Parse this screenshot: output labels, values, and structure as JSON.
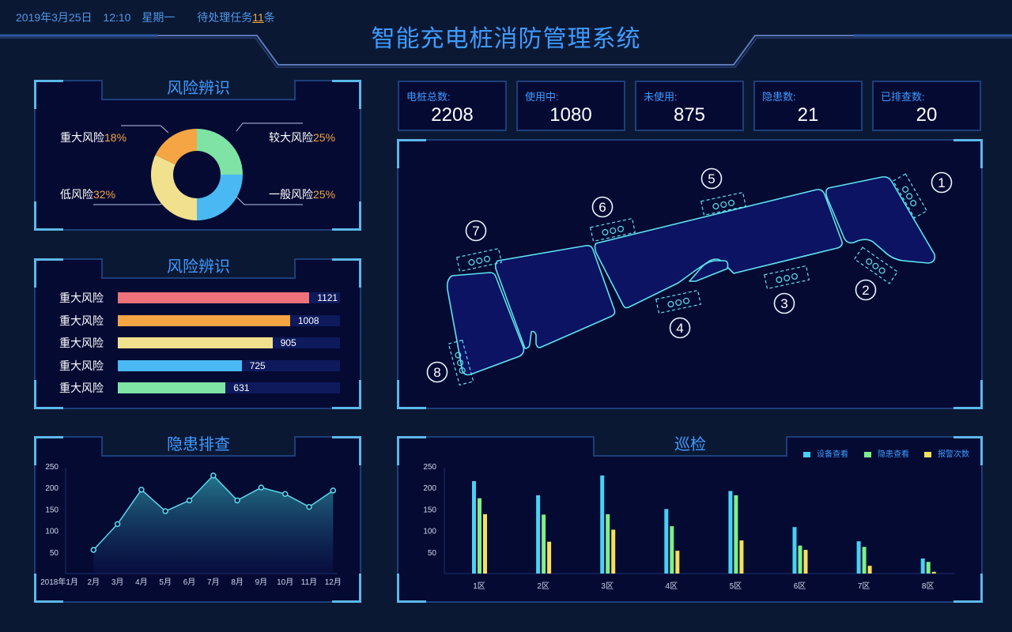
{
  "header": {
    "date": "2019年3月25日",
    "time": "12:10",
    "weekday": "星期一",
    "tasks_prefix": "待处理任务",
    "tasks_count": "11",
    "tasks_suffix": "条",
    "title": "智能充电桩消防管理系统"
  },
  "risk_pie": {
    "title": "风险辨识",
    "slices": [
      {
        "label": "较大风险",
        "pct": "25%",
        "value": 25,
        "color": "#7ee3a5"
      },
      {
        "label": "一般风险",
        "pct": "25%",
        "value": 25,
        "color": "#4ab9f3"
      },
      {
        "label": "低风险",
        "pct": "32%",
        "value": 32,
        "color": "#f1e08e"
      },
      {
        "label": "重大风险",
        "pct": "18%",
        "value": 18,
        "color": "#f5a544"
      }
    ]
  },
  "risk_bars": {
    "title": "风险辨识",
    "max": 1300,
    "rows": [
      {
        "label": "重大风险",
        "value": 1121,
        "color": "#ef7179"
      },
      {
        "label": "重大风险",
        "value": 1008,
        "color": "#f5a544"
      },
      {
        "label": "重大风险",
        "value": 905,
        "color": "#f1e08e"
      },
      {
        "label": "重大风险",
        "value": 725,
        "color": "#4ab9f3"
      },
      {
        "label": "重大风险",
        "value": 631,
        "color": "#7ee3a5"
      }
    ]
  },
  "stats": [
    {
      "label": "电桩总数:",
      "value": "2208"
    },
    {
      "label": "使用中:",
      "value": "1080"
    },
    {
      "label": "未使用:",
      "value": "875"
    },
    {
      "label": "隐患数:",
      "value": "21"
    },
    {
      "label": "已排查数:",
      "value": "20"
    }
  ],
  "map": {
    "zones": [
      "1",
      "2",
      "3",
      "4",
      "5",
      "6",
      "7",
      "8"
    ]
  },
  "hazard": {
    "title": "隐患排查"
  },
  "patrol": {
    "title": "巡检",
    "legend": [
      "设备查看",
      "隐患查看",
      "报警次数"
    ]
  },
  "chart_data": [
    {
      "type": "area",
      "title": "隐患排查",
      "x": [
        "2018年1月",
        "2月",
        "3月",
        "4月",
        "5月",
        "6月",
        "7月",
        "8月",
        "9月",
        "10月",
        "11月",
        "12月"
      ],
      "values": [
        null,
        55,
        115,
        195,
        145,
        170,
        228,
        170,
        200,
        185,
        155,
        193
      ],
      "ylim": [
        0,
        270
      ],
      "yticks": [
        50,
        100,
        150,
        200,
        250
      ],
      "color": "#5fd6e8"
    },
    {
      "type": "bar",
      "title": "巡检",
      "categories": [
        "1区",
        "2区",
        "3区",
        "4区",
        "5区",
        "6区",
        "7区",
        "8区"
      ],
      "series": [
        {
          "name": "设备查看",
          "color": "#4ad0f3",
          "values": [
            215,
            182,
            228,
            150,
            192,
            108,
            75,
            35
          ]
        },
        {
          "name": "隐患查看",
          "color": "#7fef8a",
          "values": [
            175,
            137,
            138,
            110,
            182,
            65,
            62,
            27
          ]
        },
        {
          "name": "报警次数",
          "color": "#f6df5c",
          "values": [
            138,
            74,
            102,
            53,
            77,
            55,
            18,
            4
          ]
        }
      ],
      "ylim": [
        0,
        270
      ],
      "yticks": [
        50,
        100,
        150,
        200,
        250
      ],
      "legend": "top-right"
    }
  ]
}
